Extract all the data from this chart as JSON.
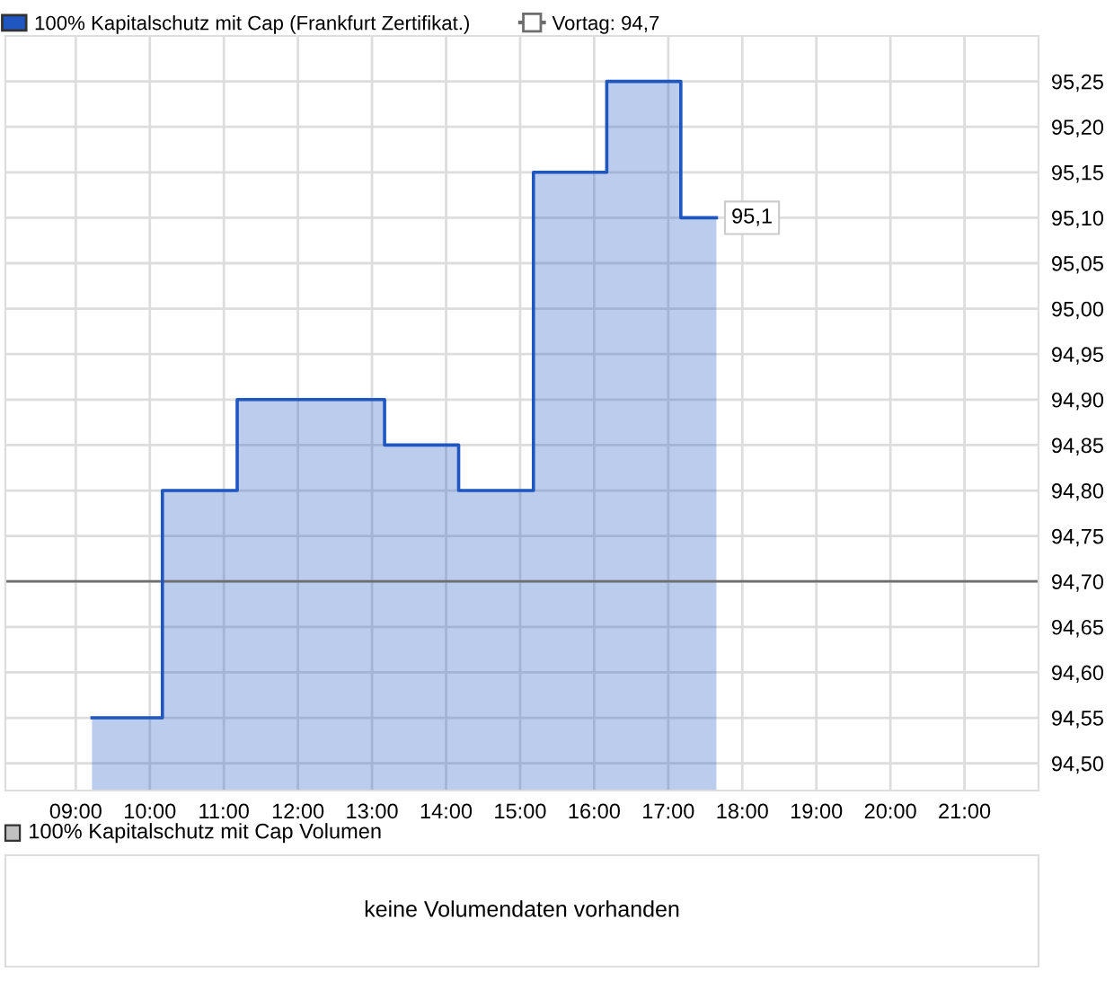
{
  "chart_data": [
    {
      "type": "area",
      "x": [
        9.22,
        10.17,
        10.17,
        11.18,
        11.18,
        13.17,
        13.17,
        14.17,
        14.17,
        15.18,
        15.18,
        16.17,
        16.17,
        17.17,
        17.17,
        17.65
      ],
      "series": [
        {
          "name": "100% Kapitalschutz mit Cap (Frankfurt Zertifikat.)",
          "color": "#1f56c0",
          "values": [
            94.55,
            94.55,
            94.8,
            94.8,
            94.9,
            94.9,
            94.85,
            94.85,
            94.8,
            94.8,
            95.15,
            95.15,
            95.25,
            95.25,
            95.1,
            95.1
          ]
        }
      ],
      "xlim": [
        8.05,
        22.0
      ],
      "ylim": [
        94.47,
        95.3
      ],
      "xticks": [
        {
          "value": 9,
          "label": "09:00"
        },
        {
          "value": 10,
          "label": "10:00"
        },
        {
          "value": 11,
          "label": "11:00"
        },
        {
          "value": 12,
          "label": "12:00"
        },
        {
          "value": 13,
          "label": "13:00"
        },
        {
          "value": 14,
          "label": "14:00"
        },
        {
          "value": 15,
          "label": "15:00"
        },
        {
          "value": 16,
          "label": "16:00"
        },
        {
          "value": 17,
          "label": "17:00"
        },
        {
          "value": 18,
          "label": "18:00"
        },
        {
          "value": 19,
          "label": "19:00"
        },
        {
          "value": 20,
          "label": "20:00"
        },
        {
          "value": 21,
          "label": "21:00"
        }
      ],
      "yticks": [
        {
          "value": 94.5,
          "label": "94,50"
        },
        {
          "value": 94.55,
          "label": "94,55"
        },
        {
          "value": 94.6,
          "label": "94,60"
        },
        {
          "value": 94.65,
          "label": "94,65"
        },
        {
          "value": 94.7,
          "label": "94,70"
        },
        {
          "value": 94.75,
          "label": "94,75"
        },
        {
          "value": 94.8,
          "label": "94,80"
        },
        {
          "value": 94.85,
          "label": "94,85"
        },
        {
          "value": 94.9,
          "label": "94,90"
        },
        {
          "value": 94.95,
          "label": "94,95"
        },
        {
          "value": 95.0,
          "label": "95,00"
        },
        {
          "value": 95.05,
          "label": "95,05"
        },
        {
          "value": 95.1,
          "label": "95,10"
        },
        {
          "value": 95.15,
          "label": "95,15"
        },
        {
          "value": 95.2,
          "label": "95,20"
        },
        {
          "value": 95.25,
          "label": "95,25"
        }
      ],
      "ref_lines": [
        {
          "axis": "y",
          "value": 94.7,
          "label": "Vortag: 94,7",
          "color": "#6e6e6e"
        }
      ],
      "annotations": [
        {
          "text": "95,1",
          "x": 17.65,
          "y": 95.1
        }
      ],
      "grid": true,
      "legend": "top left"
    },
    {
      "type": "other",
      "title": "100% Kapitalschutz mit Cap Volumen",
      "annotations": [
        "keine Volumendaten vorhanden"
      ]
    }
  ]
}
